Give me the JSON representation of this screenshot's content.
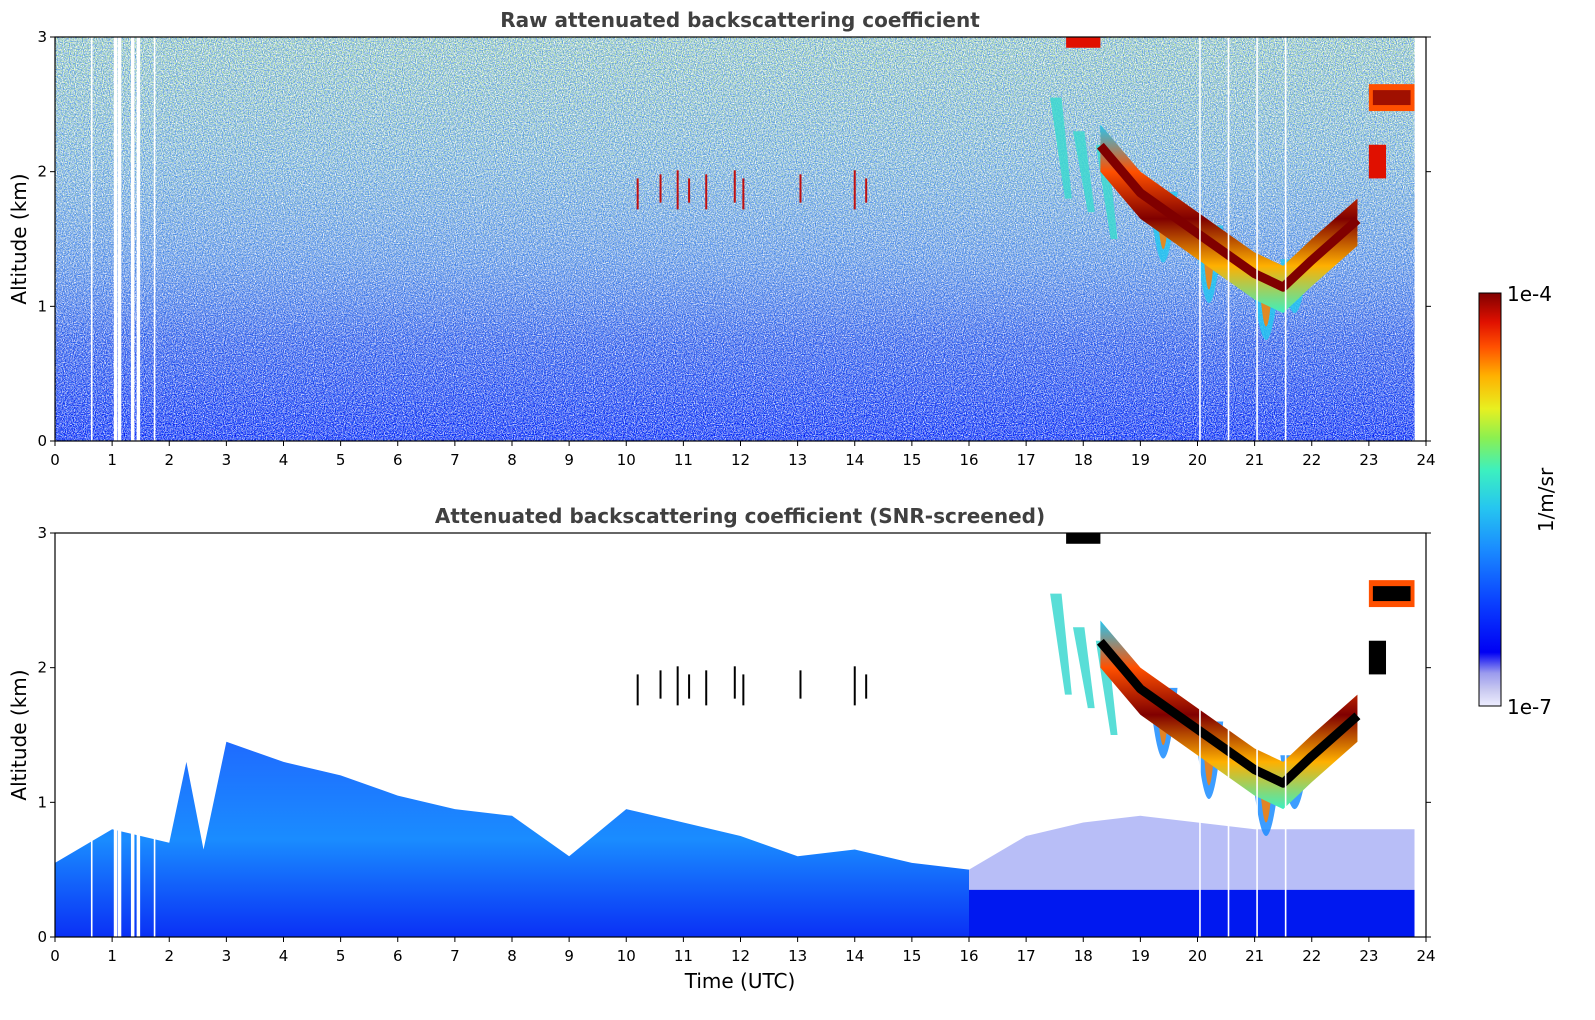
{
  "chart_data": [
    {
      "type": "heatmap",
      "title": "Raw attenuated backscattering coefficient",
      "ylabel": "Altitude (km)",
      "xlabel": "",
      "xlim": [
        0,
        24
      ],
      "ylim": [
        0,
        3
      ],
      "x_ticks": [
        "0",
        "1",
        "2",
        "3",
        "4",
        "5",
        "6",
        "7",
        "8",
        "9",
        "10",
        "11",
        "12",
        "13",
        "14",
        "15",
        "16",
        "17",
        "18",
        "19",
        "20",
        "21",
        "22",
        "23",
        "24"
      ],
      "y_ticks": [
        "0",
        "1",
        "2",
        "3"
      ],
      "data_coverage_end_hour": 23.8,
      "cloud_layer_top_km": [
        [
          18.3,
          2.35
        ],
        [
          19.0,
          2.0
        ],
        [
          20.0,
          1.7
        ],
        [
          21.0,
          1.4
        ],
        [
          21.5,
          1.3
        ],
        [
          22.0,
          1.5
        ],
        [
          22.8,
          1.8
        ]
      ],
      "upper_cloud": {
        "x_start": 23.0,
        "x_end": 23.8,
        "y_min_km": 2.45,
        "y_max_km": 2.65
      },
      "noise_region": "full profile, speckled background"
    },
    {
      "type": "heatmap",
      "title": "Attenuated backscattering coefficient (SNR-screened)",
      "ylabel": "Altitude (km)",
      "xlabel": "Time (UTC)",
      "xlim": [
        0,
        24
      ],
      "ylim": [
        0,
        3
      ],
      "x_ticks": [
        "0",
        "1",
        "2",
        "3",
        "4",
        "5",
        "6",
        "7",
        "8",
        "9",
        "10",
        "11",
        "12",
        "13",
        "14",
        "15",
        "16",
        "17",
        "18",
        "19",
        "20",
        "21",
        "22",
        "23",
        "24"
      ],
      "y_ticks": [
        "0",
        "1",
        "2",
        "3"
      ],
      "data_coverage_end_hour": 23.8,
      "boundary_layer_top_km": [
        [
          0,
          0.55
        ],
        [
          1,
          0.8
        ],
        [
          2,
          0.7
        ],
        [
          2.3,
          1.3
        ],
        [
          2.6,
          0.65
        ],
        [
          3,
          1.45
        ],
        [
          4,
          1.3
        ],
        [
          5,
          1.2
        ],
        [
          6,
          1.05
        ],
        [
          7,
          0.95
        ],
        [
          8,
          0.9
        ],
        [
          9,
          0.6
        ],
        [
          10,
          0.95
        ],
        [
          11,
          0.85
        ],
        [
          12,
          0.75
        ],
        [
          13,
          0.6
        ],
        [
          14,
          0.65
        ],
        [
          15,
          0.55
        ],
        [
          16,
          0.5
        ],
        [
          17,
          0.75
        ],
        [
          18,
          0.85
        ],
        [
          19,
          0.9
        ],
        [
          20,
          0.85
        ],
        [
          21,
          0.8
        ],
        [
          22,
          0.8
        ],
        [
          23,
          0.8
        ],
        [
          23.8,
          0.8
        ]
      ],
      "cloud_layer_top_km": [
        [
          18.3,
          2.35
        ],
        [
          19.0,
          2.0
        ],
        [
          20.0,
          1.7
        ],
        [
          21.0,
          1.4
        ],
        [
          21.5,
          1.3
        ],
        [
          22.0,
          1.5
        ],
        [
          22.8,
          1.8
        ]
      ],
      "upper_cloud": {
        "x_start": 23.0,
        "x_end": 23.8,
        "y_min_km": 2.45,
        "y_max_km": 2.65
      }
    }
  ],
  "colorbar": {
    "label": "1/m/sr",
    "max_label": "1e-4",
    "min_label": "1e-7",
    "colormap": [
      "#eeeeff",
      "#c8c8f0",
      "#9a9aee",
      "#0000f4",
      "#0a40ff",
      "#1a8cff",
      "#26c6f0",
      "#3cf0c0",
      "#8cf050",
      "#e8f020",
      "#ffb000",
      "#ff5000",
      "#e01000",
      "#800000"
    ]
  },
  "colors": {
    "title_text": "#404040",
    "axis": "#000000",
    "background": "#ffffff",
    "cloud_core_screened": "#000000"
  }
}
